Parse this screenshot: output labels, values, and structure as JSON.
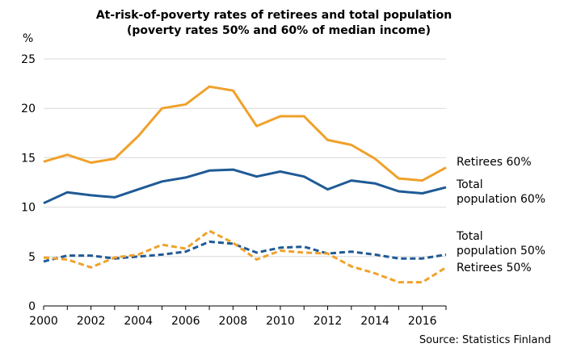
{
  "chart_data": {
    "type": "line",
    "title_lines": [
      "At-risk-of-poverty rates of retirees and total population",
      "(poverty rates 50% and 60% of median income)"
    ],
    "ylabel": "%",
    "xlabel": "",
    "x": [
      2000,
      2001,
      2002,
      2003,
      2004,
      2005,
      2006,
      2007,
      2008,
      2009,
      2010,
      2011,
      2012,
      2013,
      2014,
      2015,
      2016,
      2017
    ],
    "xlim": [
      2000,
      2017
    ],
    "ylim": [
      0,
      25
    ],
    "x_ticks": [
      2000,
      2002,
      2004,
      2006,
      2008,
      2010,
      2012,
      2014,
      2016
    ],
    "y_ticks": [
      0,
      5,
      10,
      15,
      20,
      25
    ],
    "grid": "horizontal",
    "legend": "labels at right end of lines",
    "source": "Source: Statistics Finland",
    "series": [
      {
        "name": "Retirees 60%",
        "label_lines": [
          "Retirees 60%"
        ],
        "color": "#F0A12A",
        "dash": "solid",
        "values": [
          14.6,
          15.3,
          14.5,
          14.9,
          17.2,
          20.0,
          20.4,
          22.2,
          21.8,
          18.2,
          19.2,
          19.2,
          16.8,
          16.3,
          14.9,
          12.9,
          12.7,
          14.0
        ]
      },
      {
        "name": "Total population 60%",
        "label_lines": [
          "Total",
          "population 60%"
        ],
        "color": "#1F5A96",
        "dash": "solid",
        "values": [
          10.4,
          11.5,
          11.2,
          11.0,
          11.8,
          12.6,
          13.0,
          13.7,
          13.8,
          13.1,
          13.6,
          13.1,
          11.8,
          12.7,
          12.4,
          11.6,
          11.4,
          12.0
        ]
      },
      {
        "name": "Total population 50%",
        "label_lines": [
          "Total",
          "population 50%"
        ],
        "color": "#1F5A96",
        "dash": "dashed",
        "values": [
          4.5,
          5.1,
          5.1,
          4.8,
          5.0,
          5.2,
          5.5,
          6.5,
          6.3,
          5.4,
          5.9,
          6.0,
          5.3,
          5.5,
          5.2,
          4.8,
          4.8,
          5.2
        ]
      },
      {
        "name": "Retirees 50%",
        "label_lines": [
          "Retirees 50%"
        ],
        "color": "#F0A12A",
        "dash": "dashed",
        "values": [
          4.9,
          4.7,
          3.9,
          4.9,
          5.2,
          6.2,
          5.8,
          7.6,
          6.4,
          4.7,
          5.6,
          5.4,
          5.3,
          4.0,
          3.3,
          2.4,
          2.4,
          3.9
        ]
      }
    ]
  }
}
